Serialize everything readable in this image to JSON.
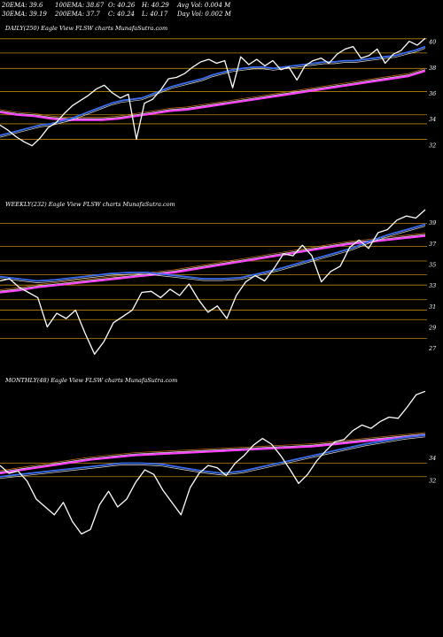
{
  "header": {
    "row1": [
      "20EMA: 39.6",
      "100EMA: 38.67",
      "O: 40.26",
      "H: 40.29",
      "Avg Vol: 0.004  M"
    ],
    "row2": [
      "30EMA: 39.19",
      "200EMA: 37.7",
      "C: 40.24",
      "L: 40.17",
      "Day Vol: 0.002  M"
    ]
  },
  "colors": {
    "background": "#000000",
    "price": "#ffffff",
    "ema_fast": "#3a6df0",
    "ema_slow": "#ff44ff",
    "ema_mid": "#e0e0e0",
    "ema_orange": "#c8701a",
    "level_line": "#b8860b"
  },
  "chart_data": [
    {
      "type": "line",
      "title": "DAILY(250) Eagle  View  FLSW charts MunafaSutra.com",
      "yticks": [
        40,
        38,
        36,
        34,
        32
      ],
      "ylim": [
        31.4,
        40.6
      ],
      "grid": true,
      "series": [
        {
          "role": "price",
          "values": [
            33.5,
            33.1,
            32.6,
            32.2,
            31.9,
            32.5,
            33.3,
            33.7,
            34.4,
            35.0,
            35.4,
            35.8,
            36.3,
            36.6,
            36.0,
            35.6,
            35.9,
            32.4,
            35.2,
            35.5,
            36.2,
            37.1,
            37.2,
            37.5,
            38.0,
            38.4,
            38.6,
            38.3,
            38.5,
            36.4,
            38.8,
            38.2,
            38.6,
            38.1,
            38.5,
            37.8,
            38.0,
            37.0,
            38.1,
            38.5,
            38.7,
            38.3,
            39.0,
            39.4,
            39.6,
            38.7,
            38.9,
            39.4,
            38.3,
            39.0,
            39.3,
            40.0,
            39.7,
            40.24
          ]
        },
        {
          "role": "ema_fast",
          "values": [
            32.7,
            32.9,
            33.1,
            33.3,
            33.5,
            33.6,
            33.8,
            34.0,
            34.3,
            34.6,
            34.9,
            35.2,
            35.4,
            35.5,
            35.6,
            35.9,
            36.2,
            36.5,
            36.7,
            36.9,
            37.1,
            37.4,
            37.6,
            37.8,
            37.9,
            38.0,
            38.0,
            37.9,
            38.0,
            38.1,
            38.2,
            38.3,
            38.4,
            38.4,
            38.5,
            38.5,
            38.6,
            38.7,
            38.8,
            38.9,
            39.1,
            39.3,
            39.6
          ]
        },
        {
          "role": "ema_slow",
          "values": [
            34.5,
            34.3,
            34.2,
            34.0,
            33.9,
            33.9,
            33.9,
            34.0,
            34.2,
            34.4,
            34.6,
            34.7,
            34.9,
            35.1,
            35.3,
            35.5,
            35.7,
            35.9,
            36.1,
            36.3,
            36.5,
            36.7,
            36.9,
            37.1,
            37.3,
            37.7
          ]
        }
      ],
      "levels": [
        40.2,
        39.1,
        37.9,
        36.1,
        34.3,
        33.6,
        32.4
      ]
    },
    {
      "type": "line",
      "title": "WEEKLY(232) Eagle  View  FLSW charts MunafaSutra.com",
      "yticks": [
        39,
        37,
        35,
        33,
        31,
        29,
        27
      ],
      "ylim": [
        26.0,
        40.2
      ],
      "grid": true,
      "series": [
        {
          "role": "price",
          "values": [
            33.4,
            33.6,
            32.8,
            32.3,
            31.8,
            29.0,
            30.3,
            29.8,
            30.6,
            28.4,
            26.4,
            27.6,
            29.4,
            30.0,
            30.6,
            32.3,
            32.4,
            31.8,
            32.6,
            32.0,
            33.1,
            31.6,
            30.4,
            31.0,
            29.8,
            32.0,
            33.3,
            33.9,
            33.4,
            34.6,
            36.0,
            35.8,
            36.8,
            35.8,
            33.3,
            34.3,
            34.8,
            36.6,
            37.3,
            36.5,
            38.0,
            38.3,
            39.2,
            39.6,
            39.4,
            40.2
          ]
        },
        {
          "role": "ema_fast",
          "values": [
            33.8,
            33.6,
            33.4,
            33.5,
            33.7,
            33.9,
            34.1,
            34.2,
            34.2,
            34.0,
            33.8,
            33.6,
            33.6,
            33.7,
            34.1,
            34.5,
            35.0,
            35.5,
            36.0,
            36.5,
            37.2,
            37.8,
            38.3,
            38.8
          ]
        },
        {
          "role": "ema_slow",
          "values": [
            32.3,
            32.5,
            32.8,
            33.0,
            33.2,
            33.4,
            33.6,
            33.8,
            34.0,
            34.2,
            34.5,
            34.8,
            35.1,
            35.4,
            35.7,
            36.0,
            36.3,
            36.6,
            36.9,
            37.1,
            37.3,
            37.5,
            37.7
          ]
        }
      ],
      "levels": [
        38.9,
        36.7,
        35.3,
        34.0,
        33.0,
        31.6,
        30.6,
        29.7,
        27.9
      ]
    },
    {
      "type": "line",
      "title": "MONTHLY(48) Eagle  View  FLSW charts MunafaSutra.com",
      "yticks": [
        34,
        32
      ],
      "ylim": [
        27.0,
        40.4
      ],
      "grid": true,
      "series": [
        {
          "role": "price",
          "values": [
            33.3,
            32.6,
            32.8,
            31.9,
            30.3,
            29.6,
            28.9,
            30.0,
            28.3,
            27.2,
            27.6,
            29.8,
            31.0,
            29.6,
            30.3,
            31.8,
            32.9,
            32.5,
            31.1,
            30.0,
            28.9,
            31.3,
            32.6,
            33.3,
            33.1,
            32.4,
            33.5,
            34.2,
            35.1,
            35.7,
            35.2,
            34.2,
            33.0,
            31.7,
            32.5,
            33.7,
            34.6,
            35.4,
            35.6,
            36.4,
            36.9,
            36.6,
            37.2,
            37.6,
            37.5,
            38.5,
            39.6,
            39.9
          ]
        },
        {
          "role": "ema_fast",
          "values": [
            32.3,
            32.5,
            32.7,
            32.9,
            33.1,
            33.3,
            33.5,
            33.5,
            33.4,
            33.1,
            32.8,
            32.6,
            32.8,
            33.2,
            33.6,
            34.0,
            34.4,
            34.8,
            35.2,
            35.5,
            35.8,
            36.0
          ]
        },
        {
          "role": "ema_slow",
          "values": [
            32.6,
            32.9,
            33.2,
            33.5,
            33.8,
            34.0,
            34.2,
            34.3,
            34.4,
            34.5,
            34.6,
            34.7,
            34.8,
            34.9,
            35.0,
            35.2,
            35.4,
            35.6,
            35.8,
            36.0
          ]
        }
      ],
      "levels": [
        33.5,
        32.3
      ]
    }
  ]
}
